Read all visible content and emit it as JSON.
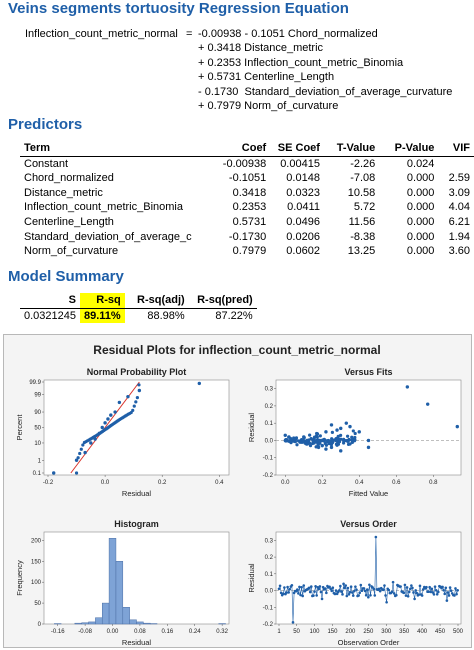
{
  "regression_equation": {
    "title": "Veins segments tortuosity Regression Equation",
    "lhs": "Inflection_count_metric_normal",
    "equals": "=",
    "lines": [
      "-0.00938 - 0.1051 Chord_normalized",
      "+ 0.3418 Distance_metric",
      "+ 0.2353 Inflection_count_metric_Binomia",
      "+ 0.5731 Centerline_Length",
      "- 0.1730  Standard_deviation_of_average_curvature",
      "+ 0.7979 Norm_of_curvature"
    ]
  },
  "predictors": {
    "title": "Predictors",
    "headers": [
      "Term",
      "Coef",
      "SE Coef",
      "T-Value",
      "P-Value",
      "VIF"
    ],
    "rows": [
      [
        "Constant",
        "-0.00938",
        "0.00415",
        "-2.26",
        "0.024",
        ""
      ],
      [
        "Chord_normalized",
        "-0.1051",
        "0.0148",
        "-7.08",
        "0.000",
        "2.59"
      ],
      [
        "Distance_metric",
        "0.3418",
        "0.0323",
        "10.58",
        "0.000",
        "3.09"
      ],
      [
        "Inflection_count_metric_Binomia",
        "0.2353",
        "0.0411",
        "5.72",
        "0.000",
        "4.04"
      ],
      [
        "Centerline_Length",
        "0.5731",
        "0.0496",
        "11.56",
        "0.000",
        "6.21"
      ],
      [
        "Standard_deviation_of_average_c",
        "-0.1730",
        "0.0206",
        "-8.38",
        "0.000",
        "1.94"
      ],
      [
        "Norm_of_curvature",
        "0.7979",
        "0.0602",
        "13.25",
        "0.000",
        "3.60"
      ]
    ]
  },
  "model_summary": {
    "title": "Model Summary",
    "headers": [
      "S",
      "R-sq",
      "R-sq(adj)",
      "R-sq(pred)"
    ],
    "values": [
      "0.0321245",
      "89.11%",
      "88.98%",
      "87.22%"
    ],
    "highlight_color": "#ffff00"
  },
  "chart_data": [
    {
      "type": "scatter",
      "panel": "Residual Plots for inflection_count_metric_normal",
      "title": "Normal Probability Plot",
      "xlabel": "Residual",
      "ylabel": "Percent",
      "xticks": [
        "-0.2",
        "0.0",
        "0.2",
        "0.4"
      ],
      "yticks": [
        "0.1",
        "1",
        "10",
        "50",
        "90",
        "99",
        "99.9"
      ],
      "xlim": [
        -0.2,
        0.42
      ],
      "fit_line": [
        [
          -0.12,
          0.1
        ],
        [
          0.12,
          99.9
        ]
      ],
      "points": [
        [
          -0.18,
          0.1
        ],
        [
          -0.1,
          1
        ],
        [
          -0.07,
          5
        ],
        [
          -0.05,
          10
        ],
        [
          -0.035,
          20
        ],
        [
          -0.02,
          35
        ],
        [
          -0.01,
          50
        ],
        [
          0.0,
          62
        ],
        [
          0.01,
          72
        ],
        [
          0.02,
          82
        ],
        [
          0.035,
          90
        ],
        [
          0.05,
          95
        ],
        [
          0.08,
          98
        ],
        [
          0.12,
          99.3
        ],
        [
          0.33,
          99.8
        ]
      ]
    },
    {
      "type": "scatter",
      "title": "Versus Fits",
      "xlabel": "Fitted Value",
      "ylabel": "Residual",
      "xticks": [
        "0.0",
        "0.2",
        "0.4",
        "0.6",
        "0.8"
      ],
      "yticks": [
        "-0.2",
        "-0.1",
        "0.0",
        "0.1",
        "0.2",
        "0.3"
      ],
      "xlim": [
        -0.05,
        0.95
      ],
      "ylim": [
        -0.2,
        0.35
      ],
      "reference_line": 0.0,
      "points": [
        [
          0.0,
          0.03
        ],
        [
          0.02,
          0.02
        ],
        [
          0.05,
          0.01
        ],
        [
          0.08,
          -0.01
        ],
        [
          0.1,
          0.02
        ],
        [
          0.12,
          -0.02
        ],
        [
          0.15,
          0.0
        ],
        [
          0.17,
          0.04
        ],
        [
          0.2,
          -0.03
        ],
        [
          0.22,
          0.05
        ],
        [
          0.25,
          -0.04
        ],
        [
          0.28,
          0.06
        ],
        [
          0.3,
          0.07
        ],
        [
          0.33,
          0.1
        ],
        [
          0.35,
          0.08
        ],
        [
          0.25,
          0.09
        ],
        [
          0.3,
          -0.06
        ],
        [
          0.4,
          0.05
        ],
        [
          0.45,
          0.0
        ],
        [
          0.45,
          -0.04
        ],
        [
          0.35,
          -0.02
        ],
        [
          0.18,
          -0.04
        ],
        [
          0.22,
          -0.05
        ],
        [
          0.14,
          0.01
        ],
        [
          0.66,
          0.31
        ],
        [
          0.77,
          0.21
        ],
        [
          0.93,
          0.08
        ]
      ]
    },
    {
      "type": "bar",
      "title": "Histogram",
      "xlabel": "Residual",
      "ylabel": "Frequency",
      "xticks": [
        "-0.16",
        "-0.08",
        "0.00",
        "0.08",
        "0.16",
        "0.24",
        "0.32"
      ],
      "yticks": [
        "0",
        "50",
        "100",
        "150",
        "200"
      ],
      "ylim": [
        0,
        220
      ],
      "bin_width": 0.02,
      "bins": [
        [
          -0.16,
          1
        ],
        [
          -0.1,
          2
        ],
        [
          -0.08,
          3
        ],
        [
          -0.06,
          5
        ],
        [
          -0.04,
          15
        ],
        [
          -0.02,
          50
        ],
        [
          0.0,
          205
        ],
        [
          0.02,
          150
        ],
        [
          0.04,
          40
        ],
        [
          0.06,
          10
        ],
        [
          0.08,
          5
        ],
        [
          0.1,
          2
        ],
        [
          0.12,
          1
        ],
        [
          0.32,
          1
        ]
      ]
    },
    {
      "type": "line",
      "title": "Versus Order",
      "xlabel": "Observation Order",
      "ylabel": "Residual",
      "xticks": [
        "1",
        "50",
        "100",
        "150",
        "200",
        "250",
        "300",
        "350",
        "400",
        "450",
        "500"
      ],
      "yticks": [
        "-0.2",
        "-0.1",
        "0.0",
        "0.1",
        "0.2",
        "0.3"
      ],
      "xlim": [
        1,
        500
      ],
      "ylim": [
        -0.2,
        0.35
      ],
      "reference_line": 0.0,
      "highlights": [
        [
          40,
          -0.19
        ],
        [
          70,
          0.03
        ],
        [
          120,
          -0.05
        ],
        [
          180,
          0.04
        ],
        [
          250,
          -0.04
        ],
        [
          270,
          0.32
        ],
        [
          300,
          -0.07
        ],
        [
          320,
          0.05
        ],
        [
          380,
          -0.05
        ],
        [
          420,
          0.02
        ],
        [
          470,
          -0.06
        ]
      ]
    }
  ]
}
